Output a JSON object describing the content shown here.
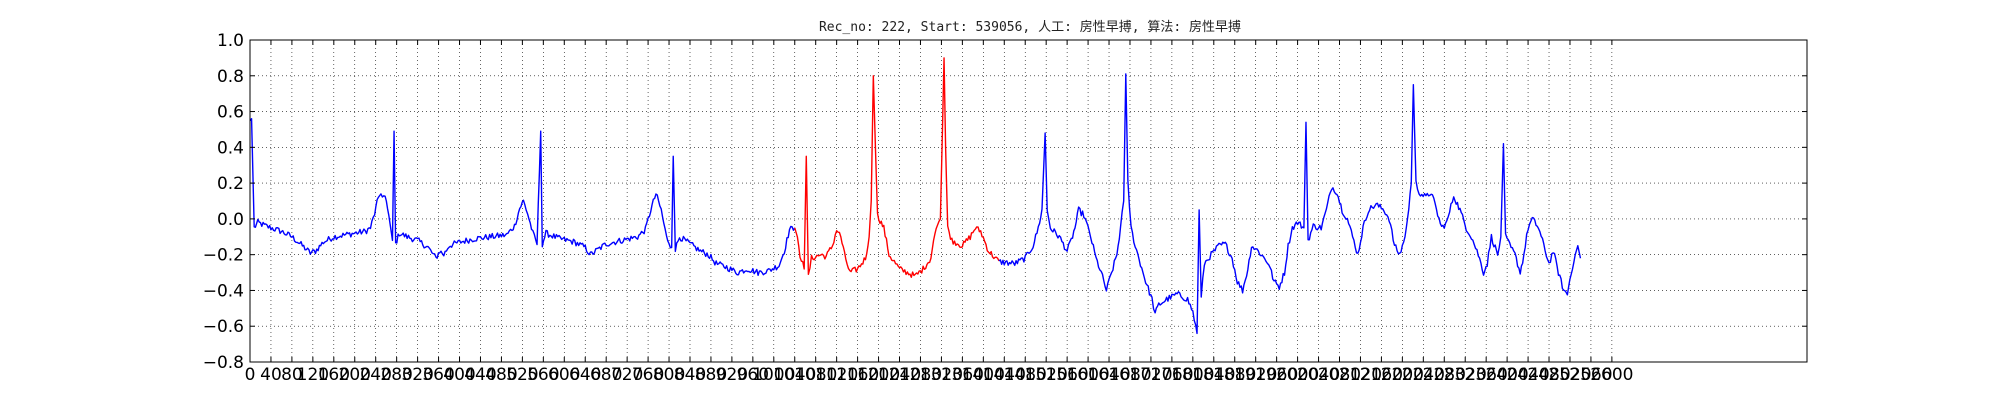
{
  "chart_data": {
    "type": "line",
    "title": "Rec_no: 222, Start: 539056, 人工: 房性早搏, 算法: 房性早搏",
    "xlabel": "",
    "ylabel": "",
    "xlim": [
      0,
      6000
    ],
    "ylim": [
      -0.8,
      1.0
    ],
    "grid": true,
    "grid_style": "dotted",
    "yticks": [
      "−0.8",
      "−0.6",
      "−0.4",
      "−0.2",
      "0.0",
      "0.2",
      "0.4",
      "0.6",
      "0.8",
      "1.0"
    ],
    "xticks": [
      "0",
      "40",
      "80",
      "120",
      "160",
      "200",
      "240",
      "280",
      "320",
      "360",
      "400",
      "440",
      "480",
      "520",
      "560",
      "600",
      "640",
      "680",
      "720",
      "760",
      "800",
      "840",
      "880",
      "920",
      "960",
      "1000",
      "1040",
      "1080",
      "1120",
      "1160",
      "1200",
      "1240",
      "1280",
      "1320",
      "1360",
      "1400",
      "1440",
      "1480",
      "1520",
      "1560",
      "1600",
      "1640",
      "1680",
      "1720",
      "1760",
      "1800",
      "1840",
      "1880",
      "1920",
      "1960",
      "2000",
      "2040",
      "2080",
      "2120",
      "2160",
      "2200",
      "2240",
      "2280",
      "2320",
      "2360",
      "2400",
      "2440",
      "2480",
      "2520",
      "2560",
      "2600"
    ],
    "x_end": 2622,
    "colors": {
      "normal": "#0000ff",
      "highlight": "#ff0000"
    },
    "highlight_range": [
      1040,
      1430
    ],
    "series": [
      {
        "key": "ecg",
        "points": [
          [
            0,
            0.55
          ],
          [
            3,
            0.56
          ],
          [
            8,
            -0.05
          ],
          [
            15,
            -0.02
          ],
          [
            30,
            -0.04
          ],
          [
            60,
            -0.07
          ],
          [
            80,
            -0.1
          ],
          [
            100,
            -0.15
          ],
          [
            115,
            -0.19
          ],
          [
            125,
            -0.18
          ],
          [
            140,
            -0.13
          ],
          [
            160,
            -0.1
          ],
          [
            180,
            -0.09
          ],
          [
            200,
            -0.08
          ],
          [
            220,
            -0.07
          ],
          [
            230,
            -0.05
          ],
          [
            238,
            0.03
          ],
          [
            245,
            0.12
          ],
          [
            250,
            0.14
          ],
          [
            258,
            0.12
          ],
          [
            265,
            0.02
          ],
          [
            270,
            -0.08
          ],
          [
            272,
            -0.12
          ],
          [
            275,
            0.49
          ],
          [
            278,
            -0.14
          ],
          [
            285,
            -0.08
          ],
          [
            300,
            -0.1
          ],
          [
            320,
            -0.12
          ],
          [
            340,
            -0.16
          ],
          [
            355,
            -0.22
          ],
          [
            362,
            -0.18
          ],
          [
            370,
            -0.2
          ],
          [
            380,
            -0.15
          ],
          [
            400,
            -0.13
          ],
          [
            430,
            -0.11
          ],
          [
            460,
            -0.1
          ],
          [
            490,
            -0.09
          ],
          [
            505,
            -0.04
          ],
          [
            515,
            0.06
          ],
          [
            522,
            0.1
          ],
          [
            530,
            0.03
          ],
          [
            540,
            -0.08
          ],
          [
            548,
            -0.14
          ],
          [
            555,
            0.49
          ],
          [
            558,
            -0.14
          ],
          [
            565,
            -0.08
          ],
          [
            590,
            -0.11
          ],
          [
            620,
            -0.13
          ],
          [
            640,
            -0.16
          ],
          [
            650,
            -0.2
          ],
          [
            660,
            -0.18
          ],
          [
            680,
            -0.14
          ],
          [
            710,
            -0.12
          ],
          [
            740,
            -0.1
          ],
          [
            755,
            -0.06
          ],
          [
            765,
            0.05
          ],
          [
            775,
            0.14
          ],
          [
            785,
            0.05
          ],
          [
            795,
            -0.1
          ],
          [
            805,
            -0.16
          ],
          [
            808,
            0.35
          ],
          [
            812,
            -0.17
          ],
          [
            820,
            -0.1
          ],
          [
            845,
            -0.15
          ],
          [
            860,
            -0.18
          ],
          [
            875,
            -0.2
          ],
          [
            890,
            -0.25
          ],
          [
            910,
            -0.27
          ],
          [
            930,
            -0.3
          ],
          [
            950,
            -0.28
          ],
          [
            970,
            -0.3
          ],
          [
            990,
            -0.29
          ],
          [
            1010,
            -0.26
          ],
          [
            1020,
            -0.18
          ],
          [
            1030,
            -0.06
          ],
          [
            1040,
            -0.05
          ],
          [
            1045,
            -0.1
          ],
          [
            1050,
            -0.2
          ],
          [
            1058,
            -0.28
          ],
          [
            1062,
            0.35
          ],
          [
            1066,
            -0.32
          ],
          [
            1072,
            -0.22
          ],
          [
            1090,
            -0.2
          ],
          [
            1100,
            -0.21
          ],
          [
            1112,
            -0.15
          ],
          [
            1120,
            -0.06
          ],
          [
            1128,
            -0.1
          ],
          [
            1135,
            -0.2
          ],
          [
            1145,
            -0.3
          ],
          [
            1160,
            -0.28
          ],
          [
            1175,
            -0.22
          ],
          [
            1182,
            -0.1
          ],
          [
            1186,
            0.1
          ],
          [
            1190,
            0.8
          ],
          [
            1194,
            0.4
          ],
          [
            1198,
            0.02
          ],
          [
            1210,
            -0.05
          ],
          [
            1220,
            -0.2
          ],
          [
            1240,
            -0.28
          ],
          [
            1255,
            -0.3
          ],
          [
            1270,
            -0.32
          ],
          [
            1285,
            -0.28
          ],
          [
            1300,
            -0.22
          ],
          [
            1305,
            -0.12
          ],
          [
            1310,
            -0.05
          ],
          [
            1318,
            0.0
          ],
          [
            1322,
            0.5
          ],
          [
            1325,
            0.9
          ],
          [
            1328,
            0.4
          ],
          [
            1332,
            -0.05
          ],
          [
            1340,
            -0.12
          ],
          [
            1360,
            -0.15
          ],
          [
            1375,
            -0.1
          ],
          [
            1385,
            -0.05
          ],
          [
            1395,
            -0.07
          ],
          [
            1410,
            -0.18
          ],
          [
            1430,
            -0.24
          ],
          [
            1460,
            -0.25
          ],
          [
            1480,
            -0.22
          ],
          [
            1495,
            -0.15
          ],
          [
            1505,
            -0.05
          ],
          [
            1512,
            0.05
          ],
          [
            1518,
            0.48
          ],
          [
            1522,
            0.05
          ],
          [
            1528,
            -0.05
          ],
          [
            1545,
            -0.1
          ],
          [
            1560,
            -0.18
          ],
          [
            1568,
            -0.12
          ],
          [
            1575,
            -0.05
          ],
          [
            1582,
            0.05
          ],
          [
            1592,
            0.02
          ],
          [
            1605,
            -0.1
          ],
          [
            1615,
            -0.22
          ],
          [
            1625,
            -0.3
          ],
          [
            1635,
            -0.4
          ],
          [
            1645,
            -0.3
          ],
          [
            1655,
            -0.2
          ],
          [
            1662,
            -0.05
          ],
          [
            1668,
            0.1
          ],
          [
            1672,
            0.81
          ],
          [
            1676,
            0.2
          ],
          [
            1682,
            -0.05
          ],
          [
            1690,
            -0.15
          ],
          [
            1700,
            -0.25
          ],
          [
            1710,
            -0.35
          ],
          [
            1722,
            -0.45
          ],
          [
            1728,
            -0.53
          ],
          [
            1735,
            -0.48
          ],
          [
            1750,
            -0.45
          ],
          [
            1770,
            -0.42
          ],
          [
            1790,
            -0.45
          ],
          [
            1800,
            -0.52
          ],
          [
            1808,
            -0.64
          ],
          [
            1812,
            0.05
          ],
          [
            1816,
            -0.44
          ],
          [
            1822,
            -0.25
          ],
          [
            1835,
            -0.2
          ],
          [
            1850,
            -0.15
          ],
          [
            1862,
            -0.14
          ],
          [
            1875,
            -0.22
          ],
          [
            1885,
            -0.35
          ],
          [
            1895,
            -0.4
          ],
          [
            1905,
            -0.28
          ],
          [
            1912,
            -0.15
          ],
          [
            1925,
            -0.18
          ],
          [
            1945,
            -0.25
          ],
          [
            1955,
            -0.35
          ],
          [
            1965,
            -0.38
          ],
          [
            1975,
            -0.3
          ],
          [
            1982,
            -0.15
          ],
          [
            1990,
            -0.05
          ],
          [
            2000,
            -0.02
          ],
          [
            2012,
            -0.05
          ],
          [
            2016,
            0.54
          ],
          [
            2020,
            -0.12
          ],
          [
            2030,
            -0.04
          ],
          [
            2045,
            -0.05
          ],
          [
            2055,
            0.05
          ],
          [
            2065,
            0.18
          ],
          [
            2075,
            0.15
          ],
          [
            2085,
            0.05
          ],
          [
            2095,
            0.0
          ],
          [
            2105,
            -0.1
          ],
          [
            2115,
            -0.2
          ],
          [
            2125,
            -0.05
          ],
          [
            2135,
            0.05
          ],
          [
            2150,
            0.08
          ],
          [
            2165,
            0.05
          ],
          [
            2175,
            0.0
          ],
          [
            2185,
            -0.15
          ],
          [
            2195,
            -0.2
          ],
          [
            2205,
            -0.1
          ],
          [
            2210,
            0.0
          ],
          [
            2217,
            0.2
          ],
          [
            2221,
            0.75
          ],
          [
            2226,
            0.2
          ],
          [
            2232,
            0.15
          ],
          [
            2245,
            0.12
          ],
          [
            2255,
            0.15
          ],
          [
            2265,
            0.05
          ],
          [
            2275,
            -0.05
          ],
          [
            2285,
            -0.02
          ],
          [
            2298,
            0.13
          ],
          [
            2310,
            0.05
          ],
          [
            2322,
            -0.05
          ],
          [
            2332,
            -0.1
          ],
          [
            2345,
            -0.2
          ],
          [
            2355,
            -0.3
          ],
          [
            2362,
            -0.25
          ],
          [
            2370,
            -0.1
          ],
          [
            2382,
            -0.2
          ],
          [
            2388,
            -0.1
          ],
          [
            2393,
            0.42
          ],
          [
            2397,
            -0.1
          ],
          [
            2405,
            -0.15
          ],
          [
            2415,
            -0.2
          ],
          [
            2425,
            -0.3
          ],
          [
            2432,
            -0.2
          ],
          [
            2440,
            -0.05
          ],
          [
            2448,
            0.0
          ],
          [
            2460,
            -0.05
          ],
          [
            2470,
            -0.15
          ],
          [
            2480,
            -0.25
          ],
          [
            2488,
            -0.18
          ],
          [
            2498,
            -0.3
          ],
          [
            2508,
            -0.4
          ],
          [
            2515,
            -0.42
          ],
          [
            2522,
            -0.3
          ],
          [
            2530,
            -0.2
          ],
          [
            2535,
            -0.15
          ],
          [
            2540,
            -0.22
          ]
        ]
      }
    ]
  }
}
